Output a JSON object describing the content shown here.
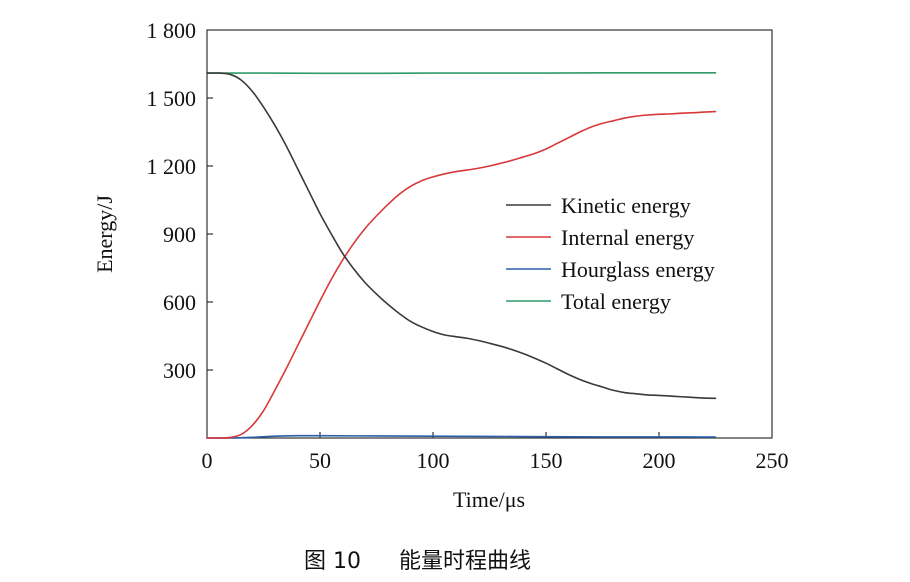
{
  "chart_data": {
    "type": "line",
    "title": "",
    "xlabel": "Time/μs",
    "ylabel": "Energy/J",
    "xlim": [
      0,
      250
    ],
    "ylim": [
      0,
      1800
    ],
    "x_ticks": [
      0,
      50,
      100,
      150,
      200,
      250
    ],
    "x_tick_labels": [
      "0",
      "50",
      "100",
      "150",
      "200",
      "250"
    ],
    "y_ticks": [
      300,
      600,
      900,
      1200,
      1500,
      1800
    ],
    "y_tick_labels": [
      "300",
      "600",
      "900",
      "1 200",
      "1 500",
      "1 800"
    ],
    "grid": false,
    "legend_position": "center-right",
    "series": [
      {
        "name": "Kinetic energy",
        "color": "#3a3a3a",
        "x": [
          0,
          5,
          10,
          15,
          20,
          25,
          30,
          35,
          40,
          45,
          50,
          55,
          60,
          65,
          70,
          75,
          80,
          85,
          90,
          95,
          100,
          105,
          110,
          115,
          120,
          125,
          130,
          135,
          140,
          145,
          150,
          155,
          160,
          165,
          170,
          175,
          180,
          185,
          190,
          195,
          200,
          205,
          210,
          215,
          220,
          225
        ],
        "values": [
          1610,
          1610,
          1605,
          1580,
          1530,
          1460,
          1380,
          1290,
          1190,
          1090,
          990,
          900,
          815,
          745,
          685,
          635,
          590,
          550,
          515,
          490,
          470,
          455,
          447,
          440,
          430,
          418,
          405,
          390,
          372,
          352,
          330,
          305,
          280,
          258,
          240,
          225,
          210,
          200,
          195,
          190,
          188,
          185,
          182,
          179,
          176,
          175
        ]
      },
      {
        "name": "Internal energy",
        "color": "#d9383a",
        "x": [
          0,
          5,
          10,
          15,
          20,
          25,
          30,
          35,
          40,
          45,
          50,
          55,
          60,
          65,
          70,
          75,
          80,
          85,
          90,
          95,
          100,
          105,
          110,
          115,
          120,
          125,
          130,
          135,
          140,
          145,
          150,
          155,
          160,
          165,
          170,
          175,
          180,
          185,
          190,
          195,
          200,
          205,
          210,
          215,
          220,
          225
        ],
        "values": [
          0,
          0,
          2,
          15,
          55,
          120,
          210,
          305,
          405,
          505,
          605,
          700,
          785,
          860,
          925,
          980,
          1030,
          1075,
          1110,
          1135,
          1152,
          1165,
          1175,
          1182,
          1190,
          1200,
          1212,
          1225,
          1240,
          1255,
          1275,
          1300,
          1325,
          1350,
          1372,
          1388,
          1400,
          1412,
          1420,
          1425,
          1428,
          1430,
          1433,
          1435,
          1438,
          1440
        ]
      },
      {
        "name": "Hourglass energy",
        "color": "#2a5fa8",
        "x": [
          0,
          10,
          20,
          30,
          40,
          50,
          75,
          100,
          125,
          150,
          175,
          200,
          225
        ],
        "values": [
          0,
          0,
          3,
          8,
          10,
          10,
          9,
          8,
          7,
          6,
          5,
          5,
          4
        ]
      },
      {
        "name": "Total energy",
        "color": "#2f9a6a",
        "x": [
          0,
          25,
          50,
          75,
          100,
          125,
          150,
          175,
          200,
          225
        ],
        "values": [
          1610,
          1610,
          1609,
          1609,
          1610,
          1610,
          1610,
          1611,
          1611,
          1611
        ]
      }
    ]
  },
  "caption": {
    "figure_number": "图 10",
    "figure_title": "能量时程曲线"
  }
}
